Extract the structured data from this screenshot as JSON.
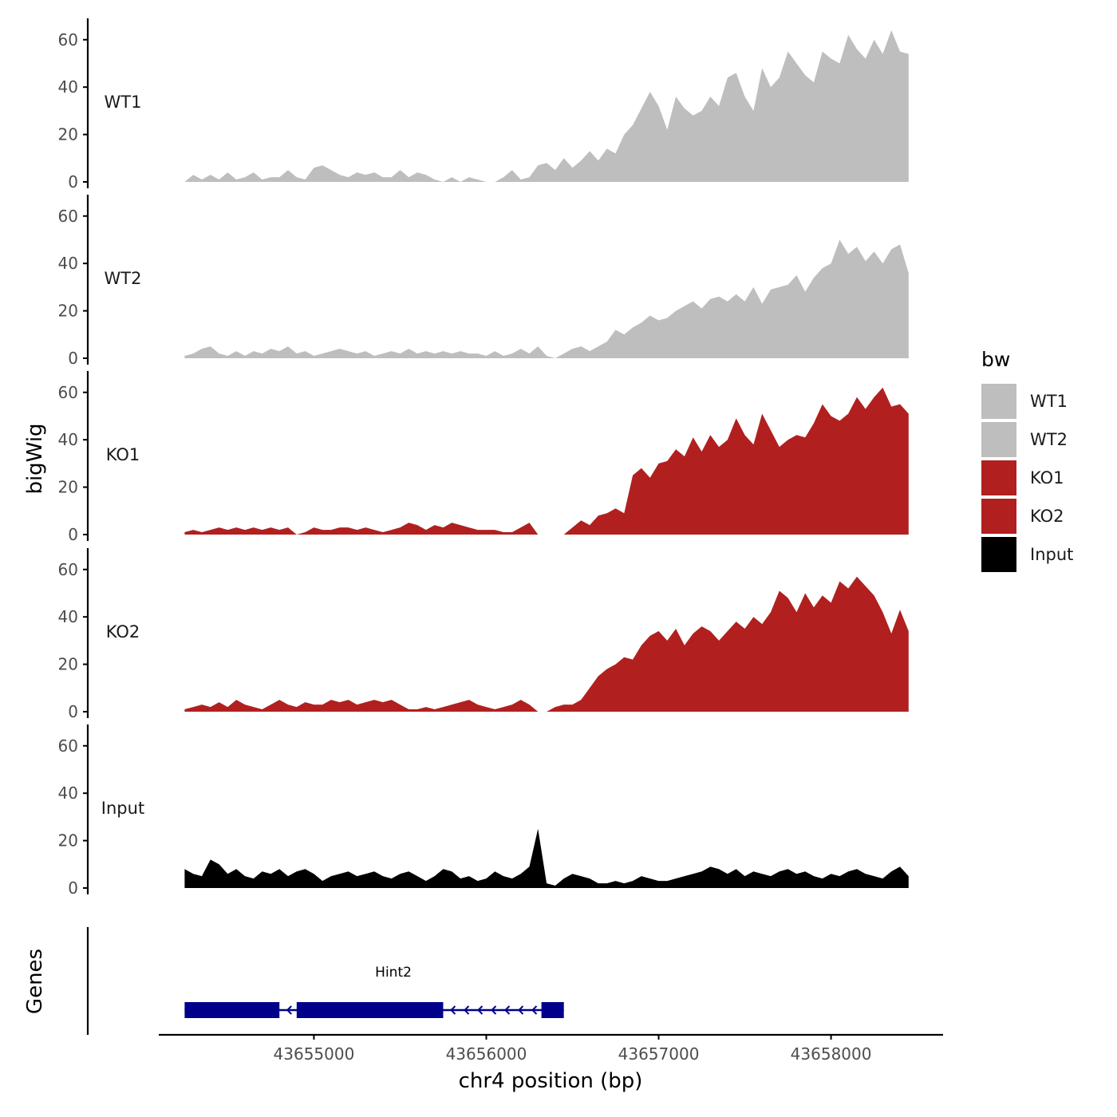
{
  "chart_data": {
    "type": "area",
    "title": "",
    "xlabel": "chr4 position (bp)",
    "ylabel": "bigWig",
    "gene_track_label": "Genes",
    "legend_title": "bw",
    "legend_position": "right",
    "grid": false,
    "xlim": [
      43654100,
      43658650
    ],
    "ylim": [
      0,
      68
    ],
    "x_ticks": [
      43655000,
      43656000,
      43657000,
      43658000
    ],
    "x_tick_labels": [
      "43655000",
      "43656000",
      "43657000",
      "43658000"
    ],
    "y_ticks": [
      0,
      20,
      40,
      60
    ],
    "y_tick_labels": [
      "0",
      "20",
      "40",
      "60"
    ],
    "colors": {
      "WT1": "#bebebe",
      "WT2": "#bebebe",
      "KO1": "#b21f1f",
      "KO2": "#b21f1f",
      "Input": "#000000",
      "gene": "#00008b"
    },
    "series": [
      {
        "name": "WT1",
        "x": [
          43654250,
          43654300,
          43654350,
          43654400,
          43654450,
          43654500,
          43654550,
          43654600,
          43654650,
          43654700,
          43654750,
          43654800,
          43654850,
          43654900,
          43654950,
          43655000,
          43655050,
          43655100,
          43655150,
          43655200,
          43655250,
          43655300,
          43655350,
          43655400,
          43655450,
          43655500,
          43655550,
          43655600,
          43655650,
          43655700,
          43655750,
          43655800,
          43655850,
          43655900,
          43655950,
          43656000,
          43656050,
          43656100,
          43656150,
          43656200,
          43656250,
          43656300,
          43656350,
          43656400,
          43656450,
          43656500,
          43656550,
          43656600,
          43656650,
          43656700,
          43656750,
          43656800,
          43656850,
          43656900,
          43656950,
          43657000,
          43657050,
          43657100,
          43657150,
          43657200,
          43657250,
          43657300,
          43657350,
          43657400,
          43657450,
          43657500,
          43657550,
          43657600,
          43657650,
          43657700,
          43657750,
          43657800,
          43657850,
          43657900,
          43657950,
          43658000,
          43658050,
          43658100,
          43658150,
          43658200,
          43658250,
          43658300,
          43658350,
          43658400,
          43658450
        ],
        "values": [
          0,
          3,
          1,
          3,
          1,
          4,
          1,
          2,
          4,
          1,
          2,
          2,
          5,
          2,
          1,
          6,
          7,
          5,
          3,
          2,
          4,
          3,
          4,
          2,
          2,
          5,
          2,
          4,
          3,
          1,
          0,
          2,
          0,
          2,
          1,
          0,
          0,
          2,
          5,
          1,
          2,
          7,
          8,
          5,
          10,
          6,
          9,
          13,
          9,
          14,
          12,
          20,
          24,
          31,
          38,
          32,
          22,
          36,
          31,
          28,
          30,
          36,
          32,
          44,
          46,
          36,
          30,
          48,
          40,
          44,
          55,
          50,
          45,
          42,
          55,
          52,
          50,
          62,
          56,
          52,
          60,
          54,
          64,
          55,
          54
        ]
      },
      {
        "name": "WT2",
        "x": [
          43654250,
          43654300,
          43654350,
          43654400,
          43654450,
          43654500,
          43654550,
          43654600,
          43654650,
          43654700,
          43654750,
          43654800,
          43654850,
          43654900,
          43654950,
          43655000,
          43655050,
          43655100,
          43655150,
          43655200,
          43655250,
          43655300,
          43655350,
          43655400,
          43655450,
          43655500,
          43655550,
          43655600,
          43655650,
          43655700,
          43655750,
          43655800,
          43655850,
          43655900,
          43655950,
          43656000,
          43656050,
          43656100,
          43656150,
          43656200,
          43656250,
          43656300,
          43656350,
          43656400,
          43656450,
          43656500,
          43656550,
          43656600,
          43656650,
          43656700,
          43656750,
          43656800,
          43656850,
          43656900,
          43656950,
          43657000,
          43657050,
          43657100,
          43657150,
          43657200,
          43657250,
          43657300,
          43657350,
          43657400,
          43657450,
          43657500,
          43657550,
          43657600,
          43657650,
          43657700,
          43657750,
          43657800,
          43657850,
          43657900,
          43657950,
          43658000,
          43658050,
          43658100,
          43658150,
          43658200,
          43658250,
          43658300,
          43658350,
          43658400,
          43658450
        ],
        "values": [
          1,
          2,
          4,
          5,
          2,
          1,
          3,
          1,
          3,
          2,
          4,
          3,
          5,
          2,
          3,
          1,
          2,
          3,
          4,
          3,
          2,
          3,
          1,
          2,
          3,
          2,
          4,
          2,
          3,
          2,
          3,
          2,
          3,
          2,
          2,
          1,
          3,
          1,
          2,
          4,
          2,
          5,
          1,
          0,
          2,
          4,
          5,
          3,
          5,
          7,
          12,
          10,
          13,
          15,
          18,
          16,
          17,
          20,
          22,
          24,
          21,
          25,
          26,
          24,
          27,
          24,
          30,
          23,
          29,
          30,
          31,
          35,
          28,
          34,
          38,
          40,
          50,
          44,
          47,
          41,
          45,
          40,
          46,
          48,
          36
        ]
      },
      {
        "name": "KO1",
        "x": [
          43654250,
          43654300,
          43654350,
          43654400,
          43654450,
          43654500,
          43654550,
          43654600,
          43654650,
          43654700,
          43654750,
          43654800,
          43654850,
          43654900,
          43654950,
          43655000,
          43655050,
          43655100,
          43655150,
          43655200,
          43655250,
          43655300,
          43655350,
          43655400,
          43655450,
          43655500,
          43655550,
          43655600,
          43655650,
          43655700,
          43655750,
          43655800,
          43655850,
          43655900,
          43655950,
          43656000,
          43656050,
          43656100,
          43656150,
          43656200,
          43656250,
          43656300,
          43656350,
          43656400,
          43656450,
          43656500,
          43656550,
          43656600,
          43656650,
          43656700,
          43656750,
          43656800,
          43656850,
          43656900,
          43656950,
          43657000,
          43657050,
          43657100,
          43657150,
          43657200,
          43657250,
          43657300,
          43657350,
          43657400,
          43657450,
          43657500,
          43657550,
          43657600,
          43657650,
          43657700,
          43657750,
          43657800,
          43657850,
          43657900,
          43657950,
          43658000,
          43658050,
          43658100,
          43658150,
          43658200,
          43658250,
          43658300,
          43658350,
          43658400,
          43658450
        ],
        "values": [
          1,
          2,
          1,
          2,
          3,
          2,
          3,
          2,
          3,
          2,
          3,
          2,
          3,
          0,
          1,
          3,
          2,
          2,
          3,
          3,
          2,
          3,
          2,
          1,
          2,
          3,
          5,
          4,
          2,
          4,
          3,
          5,
          4,
          3,
          2,
          2,
          2,
          1,
          1,
          3,
          5,
          0,
          0,
          0,
          0,
          3,
          6,
          4,
          8,
          9,
          11,
          9,
          25,
          28,
          24,
          30,
          31,
          36,
          33,
          41,
          35,
          42,
          37,
          40,
          49,
          42,
          38,
          51,
          44,
          37,
          40,
          42,
          41,
          47,
          55,
          50,
          48,
          51,
          58,
          53,
          58,
          62,
          54,
          55,
          51
        ]
      },
      {
        "name": "KO2",
        "x": [
          43654250,
          43654300,
          43654350,
          43654400,
          43654450,
          43654500,
          43654550,
          43654600,
          43654650,
          43654700,
          43654750,
          43654800,
          43654850,
          43654900,
          43654950,
          43655000,
          43655050,
          43655100,
          43655150,
          43655200,
          43655250,
          43655300,
          43655350,
          43655400,
          43655450,
          43655500,
          43655550,
          43655600,
          43655650,
          43655700,
          43655750,
          43655800,
          43655850,
          43655900,
          43655950,
          43656000,
          43656050,
          43656100,
          43656150,
          43656200,
          43656250,
          43656300,
          43656350,
          43656400,
          43656450,
          43656500,
          43656550,
          43656600,
          43656650,
          43656700,
          43656750,
          43656800,
          43656850,
          43656900,
          43656950,
          43657000,
          43657050,
          43657100,
          43657150,
          43657200,
          43657250,
          43657300,
          43657350,
          43657400,
          43657450,
          43657500,
          43657550,
          43657600,
          43657650,
          43657700,
          43657750,
          43657800,
          43657850,
          43657900,
          43657950,
          43658000,
          43658050,
          43658100,
          43658150,
          43658200,
          43658250,
          43658300,
          43658350,
          43658400,
          43658450
        ],
        "values": [
          1,
          2,
          3,
          2,
          4,
          2,
          5,
          3,
          2,
          1,
          3,
          5,
          3,
          2,
          4,
          3,
          3,
          5,
          4,
          5,
          3,
          4,
          5,
          4,
          5,
          3,
          1,
          1,
          2,
          1,
          2,
          3,
          4,
          5,
          3,
          2,
          1,
          2,
          3,
          5,
          3,
          0,
          0,
          2,
          3,
          3,
          5,
          10,
          15,
          18,
          20,
          23,
          22,
          28,
          32,
          34,
          30,
          35,
          28,
          33,
          36,
          34,
          30,
          34,
          38,
          35,
          40,
          37,
          42,
          51,
          48,
          42,
          50,
          44,
          49,
          46,
          55,
          52,
          57,
          53,
          49,
          42,
          33,
          43,
          34
        ]
      },
      {
        "name": "Input",
        "x": [
          43654250,
          43654300,
          43654350,
          43654400,
          43654450,
          43654500,
          43654550,
          43654600,
          43654650,
          43654700,
          43654750,
          43654800,
          43654850,
          43654900,
          43654950,
          43655000,
          43655050,
          43655100,
          43655150,
          43655200,
          43655250,
          43655300,
          43655350,
          43655400,
          43655450,
          43655500,
          43655550,
          43655600,
          43655650,
          43655700,
          43655750,
          43655800,
          43655850,
          43655900,
          43655950,
          43656000,
          43656050,
          43656100,
          43656150,
          43656200,
          43656250,
          43656300,
          43656350,
          43656400,
          43656450,
          43656500,
          43656550,
          43656600,
          43656650,
          43656700,
          43656750,
          43656800,
          43656850,
          43656900,
          43656950,
          43657000,
          43657050,
          43657100,
          43657150,
          43657200,
          43657250,
          43657300,
          43657350,
          43657400,
          43657450,
          43657500,
          43657550,
          43657600,
          43657650,
          43657700,
          43657750,
          43657800,
          43657850,
          43657900,
          43657950,
          43658000,
          43658050,
          43658100,
          43658150,
          43658200,
          43658250,
          43658300,
          43658350,
          43658400,
          43658450
        ],
        "values": [
          8,
          6,
          5,
          12,
          10,
          6,
          8,
          5,
          4,
          7,
          6,
          8,
          5,
          7,
          8,
          6,
          3,
          5,
          6,
          7,
          5,
          6,
          7,
          5,
          4,
          6,
          7,
          5,
          3,
          5,
          8,
          7,
          4,
          5,
          3,
          4,
          7,
          5,
          4,
          6,
          9,
          25,
          2,
          1,
          4,
          6,
          5,
          4,
          2,
          2,
          3,
          2,
          3,
          5,
          4,
          3,
          3,
          4,
          5,
          6,
          7,
          9,
          8,
          6,
          8,
          5,
          7,
          6,
          5,
          7,
          8,
          6,
          7,
          5,
          4,
          6,
          5,
          7,
          8,
          6,
          5,
          4,
          7,
          9,
          5
        ]
      }
    ],
    "gene_annotation": {
      "name": "Hint2",
      "strand": "-",
      "start": 43654250,
      "end": 43656450,
      "exons": [
        [
          43654250,
          43654800
        ],
        [
          43654900,
          43655750
        ],
        [
          43656320,
          43656450
        ]
      ]
    }
  }
}
